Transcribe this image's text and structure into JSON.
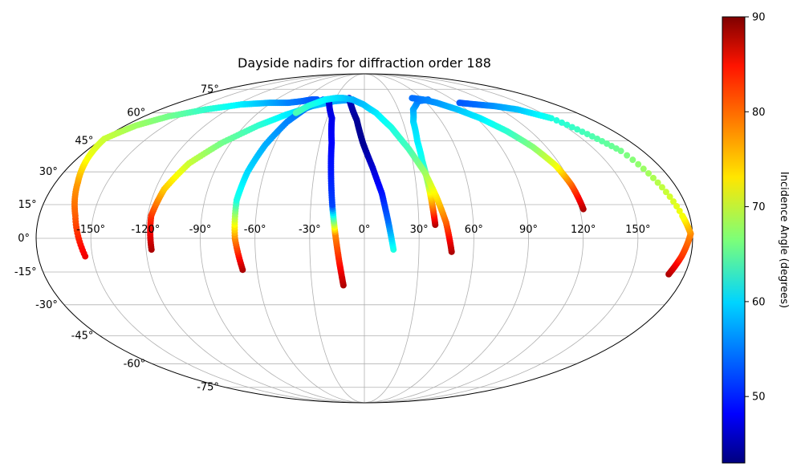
{
  "chart_data": {
    "type": "scatter",
    "projection": "mollweide",
    "title": "Dayside nadirs for diffraction order 188",
    "grid": true,
    "x_tick_labels": [
      "-150°",
      "-120°",
      "-90°",
      "-60°",
      "-30°",
      "0°",
      "30°",
      "60°",
      "90°",
      "120°",
      "150°"
    ],
    "x_tick_values": [
      -150,
      -120,
      -90,
      -60,
      -30,
      0,
      30,
      60,
      90,
      120,
      150
    ],
    "y_tick_labels": [
      "-75°",
      "-60°",
      "-45°",
      "-30°",
      "-15°",
      "0°",
      "15°",
      "30°",
      "45°",
      "60°",
      "75°"
    ],
    "y_tick_values": [
      -75,
      -60,
      -45,
      -30,
      -15,
      0,
      15,
      30,
      45,
      60,
      75
    ],
    "xlim": [
      -180,
      180
    ],
    "ylim": [
      -90,
      90
    ],
    "colorbar": {
      "label": "Incidence Angle (degrees)",
      "colormap": "jet",
      "range": [
        43,
        90
      ],
      "tick_labels": [
        "50",
        "60",
        "70",
        "80",
        "90"
      ],
      "tick_values": [
        50,
        60,
        70,
        80,
        90
      ]
    },
    "series": [
      {
        "x": [
          -154,
          -160,
          -167,
          -174,
          -179,
          -172,
          -160,
          -140,
          -116,
          -92,
          -74,
          -62,
          -54,
          -48
        ],
        "y": [
          -8,
          10,
          25,
          37,
          46,
          53,
          58,
          62,
          65,
          66,
          66,
          67,
          68,
          68
        ],
        "c": [
          85,
          80,
          77,
          72,
          70,
          68,
          66,
          63,
          60,
          57,
          55,
          54,
          53,
          53
        ]
      },
      {
        "x": [
          -117,
          -118,
          -115,
          -108,
          -96,
          -80,
          -65,
          -48,
          -30,
          -12
        ],
        "y": [
          -5,
          10,
          22,
          34,
          44,
          53,
          59,
          64,
          67,
          68
        ],
        "c": [
          88,
          82,
          75,
          70,
          66,
          63,
          60,
          58,
          57,
          56
        ]
      },
      {
        "x": [
          -68,
          -71,
          -72,
          -70,
          -66,
          -60,
          -52,
          -42
        ],
        "y": [
          -14,
          0,
          17,
          30,
          43,
          55,
          63,
          68
        ],
        "c": [
          88,
          78,
          62,
          59,
          57,
          55,
          54,
          53
        ]
      },
      {
        "x": [
          -12,
          -14,
          -16,
          -18,
          -20,
          -22,
          -26,
          -35
        ],
        "y": [
          -21,
          -10,
          2,
          15,
          30,
          44,
          57,
          67
        ],
        "c": [
          88,
          83,
          78,
          52,
          50,
          49,
          48,
          47
        ]
      },
      {
        "x": [
          16,
          13,
          10,
          5,
          -1,
          -6,
          -12,
          -16
        ],
        "y": [
          -5,
          8,
          20,
          32,
          44,
          56,
          64,
          69
        ],
        "c": [
          62,
          54,
          50,
          47,
          44,
          44,
          45,
          46
        ]
      },
      {
        "x": [
          39,
          38,
          37,
          36,
          36,
          38,
          43,
          53,
          65
        ],
        "y": [
          6,
          15,
          25,
          35,
          45,
          55,
          62,
          67,
          68
        ],
        "c": [
          88,
          78,
          68,
          62,
          60,
          59,
          57,
          55,
          54
        ]
      },
      {
        "x": [
          48,
          45,
          41,
          36,
          29,
          20,
          10,
          -1,
          -12,
          -22,
          -30,
          -40,
          -52,
          -58
        ],
        "y": [
          -6,
          7,
          18,
          30,
          41,
          52,
          60,
          65,
          68,
          69,
          69,
          68,
          64,
          60
        ],
        "c": [
          88,
          80,
          74,
          68,
          64,
          62,
          60,
          58,
          57,
          58,
          59,
          60,
          62,
          64
        ]
      },
      {
        "x": [
          122,
          120,
          117,
          111,
          103,
          93,
          82,
          70,
          60,
          50
        ],
        "y": [
          13,
          24,
          33,
          42,
          50,
          57,
          62,
          66,
          68,
          69
        ],
        "c": [
          88,
          80,
          72,
          67,
          63,
          60,
          58,
          56,
          55,
          54
        ]
      },
      {
        "x": [
          171,
          175,
          179,
          176,
          166,
          150,
          135,
          120,
          105,
          92
        ],
        "y": [
          -16,
          -8,
          2,
          10,
          40,
          57,
          62,
          64,
          65,
          66
        ],
        "c": [
          88,
          82,
          78,
          72,
          66,
          62,
          58,
          56,
          54,
          53
        ]
      }
    ]
  }
}
